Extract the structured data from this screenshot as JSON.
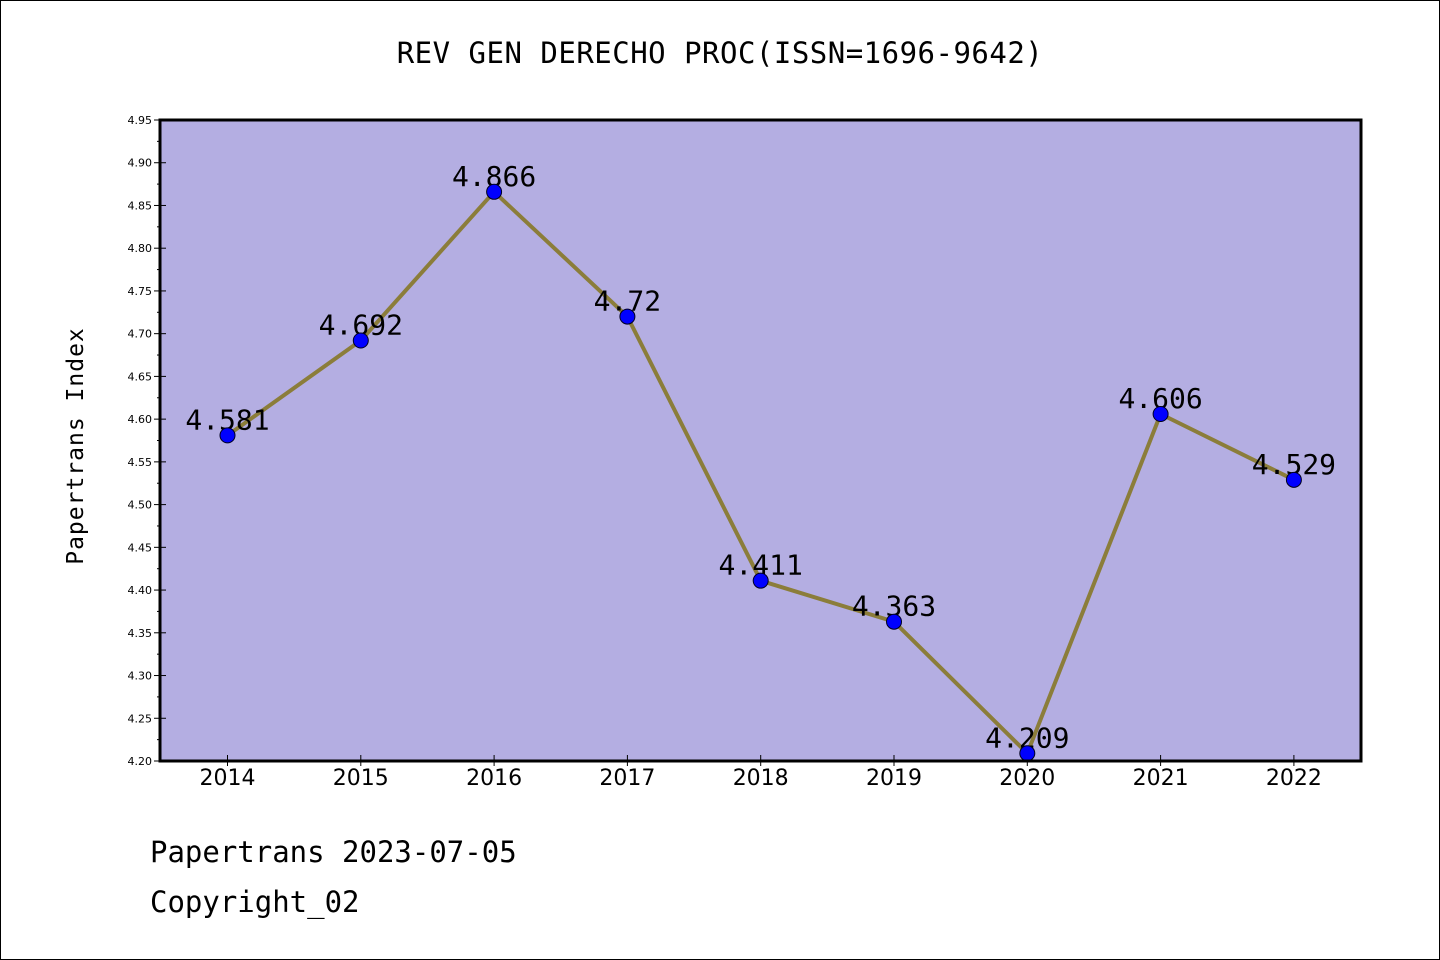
{
  "title": "REV GEN DERECHO PROC(ISSN=1696-9642)",
  "ylabel": "Papertrans Index",
  "footer": {
    "line1": "Papertrans 2023-07-05",
    "line2": "Copyright_02"
  },
  "colors": {
    "plot_background": "#b4aee2",
    "line": "#8b7d3a",
    "marker": "#0000ff"
  },
  "chart_data": {
    "type": "line",
    "title": "REV GEN DERECHO PROC(ISSN=1696-9642)",
    "xlabel": "",
    "ylabel": "Papertrans Index",
    "categories": [
      "2014",
      "2015",
      "2016",
      "2017",
      "2018",
      "2019",
      "2020",
      "2021",
      "2022"
    ],
    "series": [
      {
        "values": [
          4.581,
          4.692,
          4.866,
          4.72,
          4.411,
          4.363,
          4.209,
          4.606,
          4.529
        ]
      }
    ],
    "data_labels": [
      "4.581",
      "4.692",
      "4.866",
      "4.72",
      "4.411",
      "4.363",
      "4.209",
      "4.606",
      "4.529"
    ],
    "ylim": [
      4.2,
      4.95
    ],
    "y_ticks": [
      "4.20",
      "4.25",
      "4.30",
      "4.35",
      "4.40",
      "4.45",
      "4.50",
      "4.55",
      "4.60",
      "4.65",
      "4.70",
      "4.75",
      "4.80",
      "4.85",
      "4.90",
      "4.95"
    ],
    "grid": false,
    "legend": "none"
  }
}
